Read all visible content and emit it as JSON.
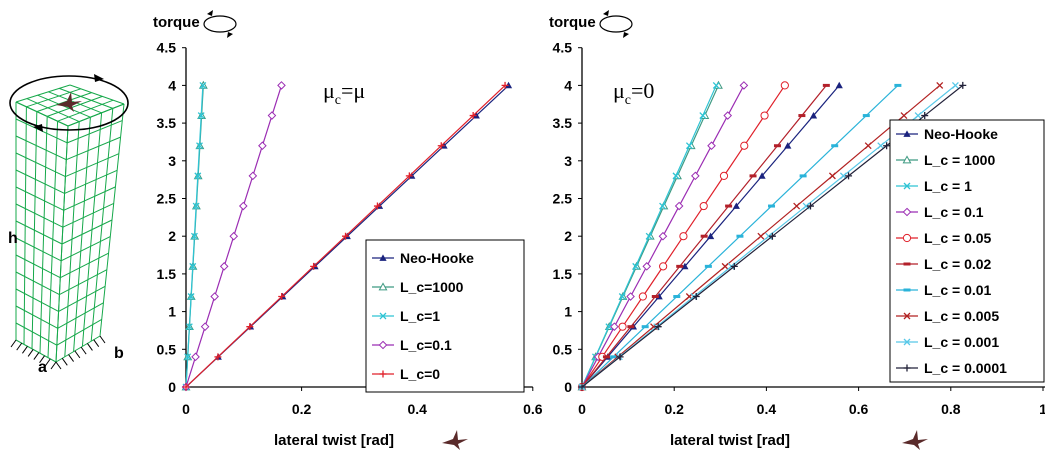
{
  "figure": {
    "specimen_labels": {
      "h": "h",
      "a": "a",
      "b": "b"
    },
    "colors": {
      "mesh": "#16a84a"
    }
  },
  "chart_data": [
    {
      "type": "line",
      "ylabel": "torque",
      "xlabel": "lateral twist [rad]",
      "annotation": {
        "main": "μ",
        "sub": "c",
        "rest": "=μ"
      },
      "xlim": [
        0,
        0.6
      ],
      "ylim": [
        0,
        4.5
      ],
      "xticks": [
        "0",
        "0.2",
        "0.4",
        "0.6"
      ],
      "yticks": [
        "0",
        "0.5",
        "1",
        "1.5",
        "2",
        "2.5",
        "3",
        "3.5",
        "4",
        "4.5"
      ],
      "legend_position": "bottom-right",
      "series": [
        {
          "name": "Neo-Hooke",
          "color": "#1a237e",
          "marker": "triangle-filled",
          "slope": 0.1395
        },
        {
          "name": "L_c=1000",
          "color": "#3f9a82",
          "marker": "triangle-open",
          "slope": 0.0075
        },
        {
          "name": "L_c=1",
          "color": "#2ec4d4",
          "marker": "x",
          "slope": 0.0073
        },
        {
          "name": "L_c=0.1",
          "color": "#9b2db3",
          "marker": "diamond-open",
          "slope": 0.0413
        },
        {
          "name": "L_c=0",
          "color": "#e0202a",
          "marker": "plus",
          "slope": 0.138
        }
      ]
    },
    {
      "type": "line",
      "ylabel": "torque",
      "xlabel": "lateral twist [rad]",
      "annotation": {
        "main": "μ",
        "sub": "c",
        "rest": "=0"
      },
      "xlim": [
        0,
        1.2
      ],
      "ylim": [
        0,
        4.5
      ],
      "xticks": [
        "0",
        "0.2",
        "0.4",
        "0.6",
        "0.8",
        "1"
      ],
      "yticks": [
        "0",
        "0.5",
        "1",
        "1.5",
        "2",
        "2.5",
        "3",
        "3.5",
        "4",
        "4.5"
      ],
      "legend_position": "right",
      "series": [
        {
          "name": "Neo-Hooke",
          "color": "#1a237e",
          "marker": "triangle-filled",
          "slope": 0.1395
        },
        {
          "name": "L_c = 1000",
          "color": "#3f9a82",
          "marker": "triangle-open",
          "slope": 0.074
        },
        {
          "name": "L_c = 1",
          "color": "#2ec4d4",
          "marker": "x",
          "slope": 0.0728
        },
        {
          "name": "L_c = 0.1",
          "color": "#9b2db3",
          "marker": "diamond-open",
          "slope": 0.0878
        },
        {
          "name": "L_c = 0.05",
          "color": "#e0202a",
          "marker": "circle-open",
          "slope": 0.11
        },
        {
          "name": "L_c = 0.02",
          "color": "#b3202a",
          "marker": "dash",
          "slope": 0.1325
        },
        {
          "name": "L_c = 0.01",
          "color": "#2ab3d9",
          "marker": "dash",
          "slope": 0.1713
        },
        {
          "name": "L_c = 0.005",
          "color": "#b22222",
          "marker": "x",
          "slope": 0.194
        },
        {
          "name": "L_c = 0.001",
          "color": "#58c8e8",
          "marker": "x",
          "slope": 0.2025
        },
        {
          "name": "L_c = 0.0001",
          "color": "#22223a",
          "marker": "plus",
          "slope": 0.2065
        }
      ]
    }
  ]
}
